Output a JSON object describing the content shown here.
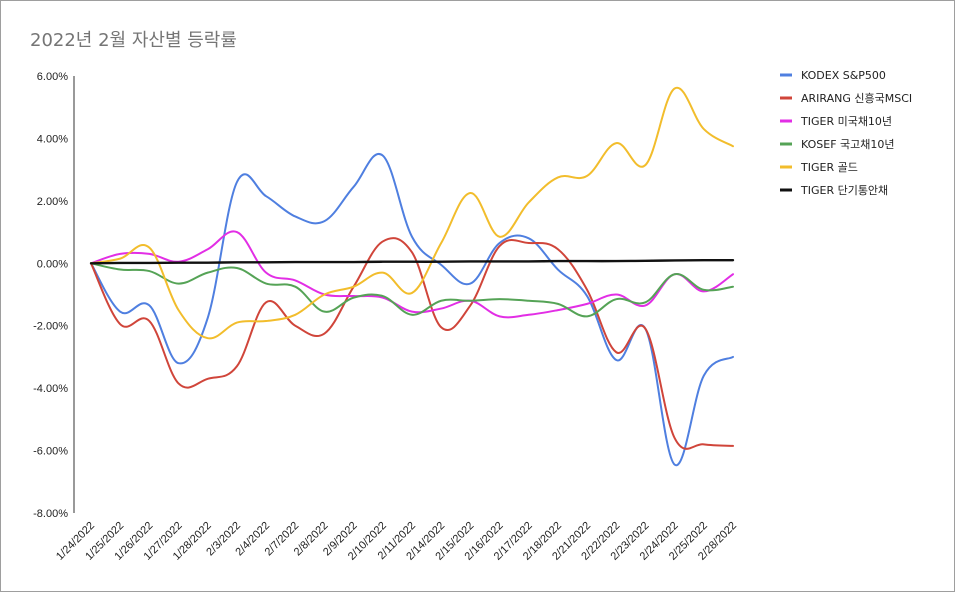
{
  "chart_data": {
    "type": "line",
    "title": "2022년 2월 자산별 등락률",
    "xlabel": "",
    "ylabel": "",
    "ylim": [
      -8,
      6
    ],
    "y_ticks": [
      "6.00%",
      "4.00%",
      "2.00%",
      "0.00%",
      "-2.00%",
      "-4.00%",
      "-6.00%",
      "-8.00%"
    ],
    "grid": false,
    "legend_position": "right",
    "categories": [
      "1/24/2022",
      "1/25/2022",
      "1/26/2022",
      "1/27/2022",
      "1/28/2022",
      "2/3/2022",
      "2/4/2022",
      "2/7/2022",
      "2/8/2022",
      "2/9/2022",
      "2/10/2022",
      "2/11/2022",
      "2/14/2022",
      "2/15/2022",
      "2/16/2022",
      "2/17/2022",
      "2/18/2022",
      "2/21/2022",
      "2/22/2022",
      "2/23/2022",
      "2/24/2022",
      "2/25/2022",
      "2/28/2022"
    ],
    "series": [
      {
        "name": "KODEX S&P500",
        "color": "#4f7fe0",
        "values": [
          0,
          -1.55,
          -1.35,
          -3.2,
          -1.75,
          2.6,
          2.15,
          1.5,
          1.35,
          2.45,
          3.45,
          0.85,
          -0.05,
          -0.65,
          0.65,
          0.8,
          -0.2,
          -1.05,
          -3.1,
          -2.1,
          -6.45,
          -3.6,
          -3.0
        ]
      },
      {
        "name": "ARIRANG 신흥국MSCI",
        "color": "#d0453a",
        "values": [
          0,
          -1.95,
          -1.85,
          -3.85,
          -3.7,
          -3.3,
          -1.25,
          -2.0,
          -2.25,
          -0.75,
          0.7,
          0.35,
          -2.05,
          -1.35,
          0.55,
          0.65,
          0.45,
          -0.85,
          -2.85,
          -2.1,
          -5.6,
          -5.8,
          -5.85
        ]
      },
      {
        "name": "TIGER 미국채10년",
        "color": "#e22ee5",
        "values": [
          0,
          0.3,
          0.3,
          0.05,
          0.45,
          1.0,
          -0.3,
          -0.55,
          -1.0,
          -1.05,
          -1.1,
          -1.55,
          -1.45,
          -1.2,
          -1.7,
          -1.65,
          -1.5,
          -1.3,
          -1.0,
          -1.35,
          -0.35,
          -0.9,
          -0.35
        ]
      },
      {
        "name": "KOSEF 국고채10년",
        "color": "#55a356",
        "values": [
          0,
          -0.2,
          -0.25,
          -0.65,
          -0.3,
          -0.15,
          -0.65,
          -0.75,
          -1.55,
          -1.1,
          -1.05,
          -1.65,
          -1.2,
          -1.2,
          -1.15,
          -1.2,
          -1.3,
          -1.7,
          -1.15,
          -1.25,
          -0.35,
          -0.85,
          -0.75
        ]
      },
      {
        "name": "TIGER 골드",
        "color": "#f2bd2c",
        "values": [
          0,
          0.15,
          0.5,
          -1.5,
          -2.4,
          -1.9,
          -1.85,
          -1.65,
          -1.0,
          -0.75,
          -0.3,
          -0.95,
          0.65,
          2.25,
          0.85,
          1.95,
          2.75,
          2.8,
          3.85,
          3.15,
          5.6,
          4.3,
          3.75
        ]
      },
      {
        "name": "TIGER 단기통안채",
        "color": "#111111",
        "values": [
          0,
          0.01,
          0.01,
          0.02,
          0.02,
          0.03,
          0.03,
          0.04,
          0.04,
          0.04,
          0.05,
          0.05,
          0.05,
          0.06,
          0.06,
          0.06,
          0.07,
          0.07,
          0.07,
          0.08,
          0.09,
          0.1,
          0.1
        ]
      }
    ]
  }
}
